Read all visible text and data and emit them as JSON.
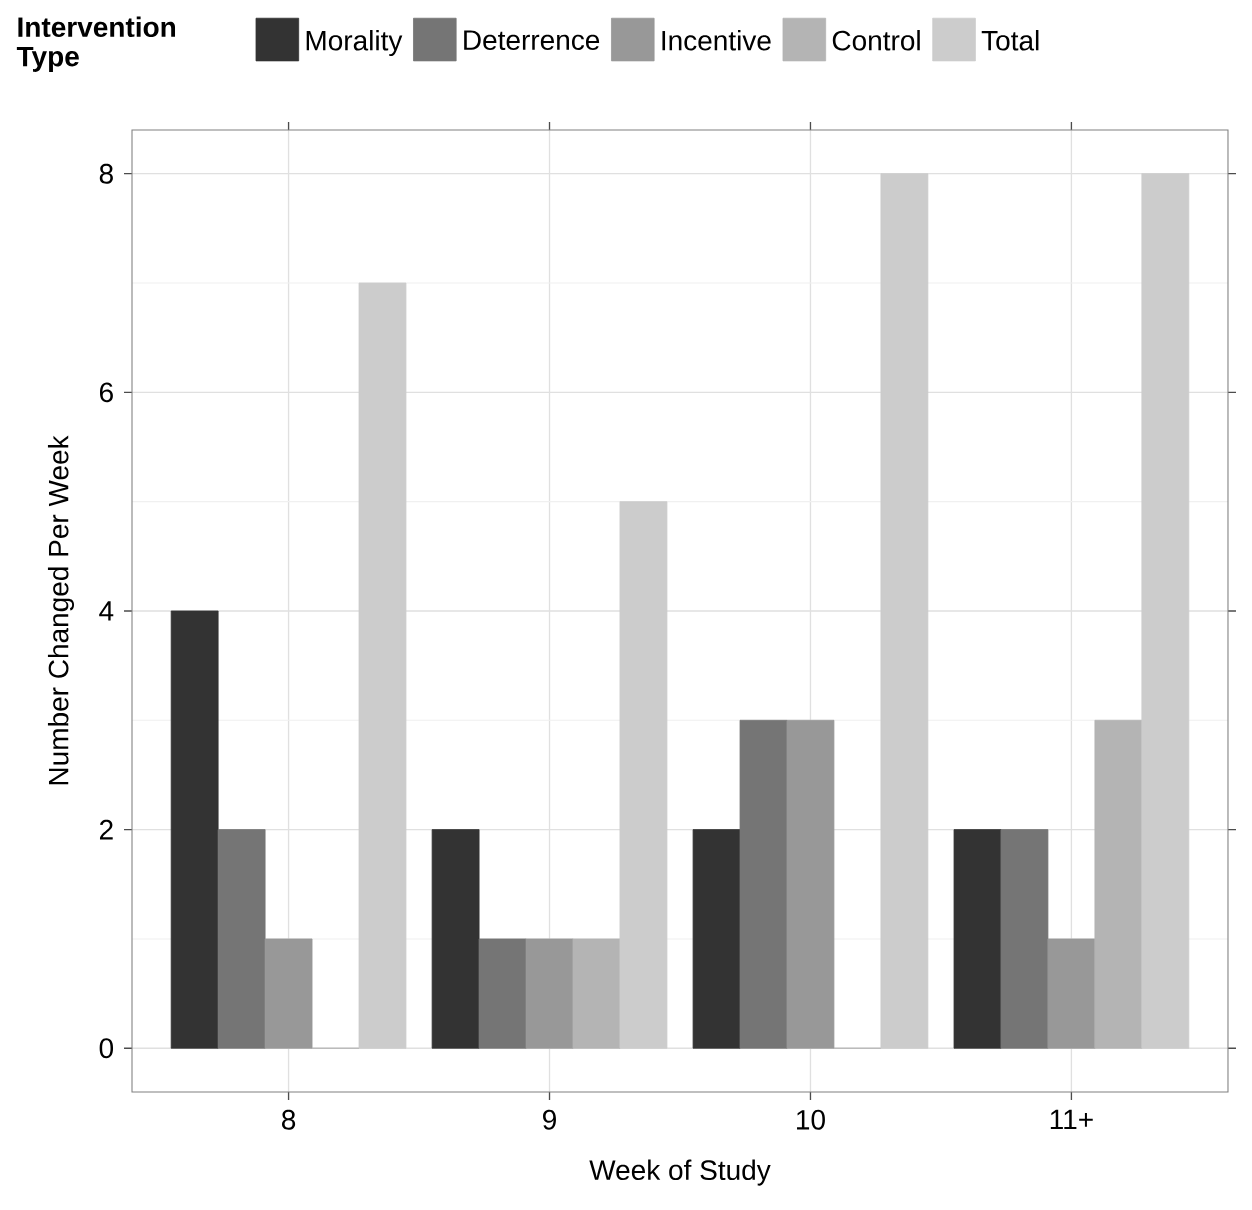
{
  "chart_data": {
    "type": "bar",
    "xlabel": "Week of Study",
    "ylabel": "Number Changed Per Week",
    "legend_title": "Intervention Type",
    "categories": [
      "8",
      "9",
      "10",
      "11+"
    ],
    "series": [
      {
        "name": "Morality",
        "color": "#333333",
        "values": [
          4,
          2,
          2,
          2
        ]
      },
      {
        "name": "Deterrence",
        "color": "#757575",
        "values": [
          2,
          1,
          3,
          2
        ]
      },
      {
        "name": "Incentive",
        "color": "#989898",
        "values": [
          1,
          1,
          3,
          1
        ]
      },
      {
        "name": "Control",
        "color": "#b4b4b4",
        "values": [
          0,
          1,
          0,
          3
        ]
      },
      {
        "name": "Total",
        "color": "#cccccc",
        "values": [
          7,
          5,
          8,
          8
        ]
      }
    ],
    "ylim": [
      -0.4,
      8.4
    ],
    "yticks": [
      0,
      2,
      4,
      6,
      8
    ],
    "grid": true,
    "legend": "top"
  }
}
